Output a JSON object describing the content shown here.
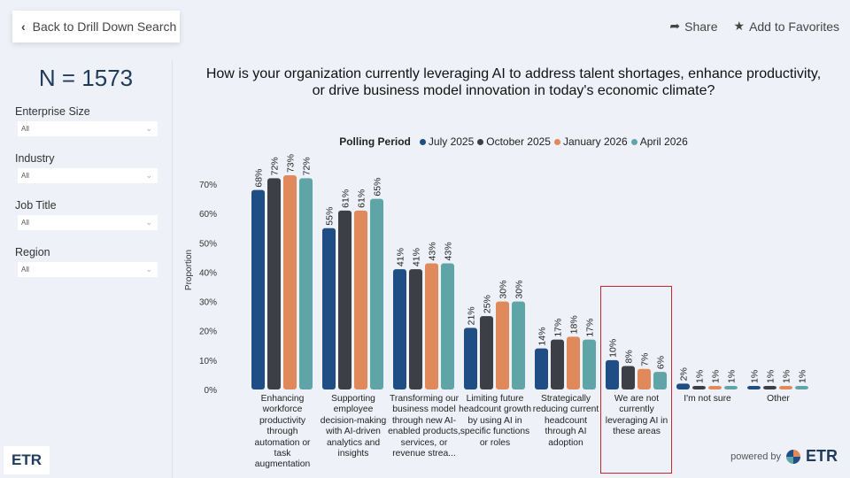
{
  "header": {
    "back_label": "Back to Drill Down Search",
    "share_label": "Share",
    "favorites_label": "Add to Favorites"
  },
  "sidebar": {
    "n_count": "N = 1573",
    "filters": [
      {
        "label": "Enterprise Size",
        "value": "All"
      },
      {
        "label": "Industry",
        "value": "All"
      },
      {
        "label": "Job Title",
        "value": "All"
      },
      {
        "label": "Region",
        "value": "All"
      }
    ]
  },
  "footer": {
    "powered_by": "powered by",
    "brand": "ETR",
    "logo_text": "ETR"
  },
  "chart_data": {
    "type": "bar",
    "title": "How is your organization currently leveraging AI to address talent shortages, enhance productivity, or drive business model innovation in today's economic climate?",
    "legend_title": "Polling Period",
    "legend_position": "top",
    "ylabel": "Proportion",
    "ylim": [
      0,
      0.75
    ],
    "yticks": [
      "0%",
      "10%",
      "20%",
      "30%",
      "40%",
      "50%",
      "60%",
      "70%"
    ],
    "grid": false,
    "highlighted_category": "We are not currently leveraging AI in these areas",
    "highlight_color": "#c8262e",
    "categories": [
      "Enhancing workforce productivity through automation or task augmentation",
      "Supporting employee decision-making with AI-driven analytics and insights",
      "Transforming our business model through new AI-enabled products, services, or revenue strea...",
      "Limiting future headcount growth by using AI in specific functions or roles",
      "Strategically reducing current headcount through AI adoption",
      "We are not currently leveraging AI in these areas",
      "I'm not sure",
      "Other"
    ],
    "series": [
      {
        "name": "July 2025",
        "color": "#1f4e85",
        "values": [
          68,
          55,
          41,
          21,
          14,
          10,
          2,
          1
        ]
      },
      {
        "name": "October 2025",
        "color": "#3d3f44",
        "values": [
          72,
          61,
          41,
          25,
          17,
          8,
          1,
          1
        ]
      },
      {
        "name": "January 2026",
        "color": "#e0895a",
        "values": [
          73,
          61,
          43,
          30,
          18,
          7,
          1,
          1
        ]
      },
      {
        "name": "April 2026",
        "color": "#5fa5a8",
        "values": [
          72,
          65,
          43,
          30,
          17,
          6,
          1,
          1
        ]
      }
    ]
  }
}
